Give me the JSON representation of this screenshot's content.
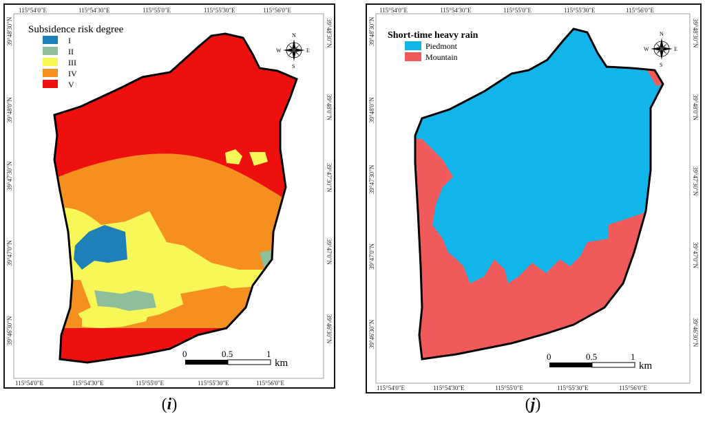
{
  "panels": [
    {
      "id": "i",
      "caption": "i",
      "legend": {
        "title": "Subsidence risk degree",
        "items": [
          {
            "label": "I",
            "color": "#1f7fb8"
          },
          {
            "label": "II",
            "color": "#8fbf9a"
          },
          {
            "label": "III",
            "color": "#f7f757"
          },
          {
            "label": "IV",
            "color": "#f59020"
          },
          {
            "label": "V",
            "color": "#ee0f0f"
          }
        ]
      },
      "top_ticks": [
        "115°54'0\"E",
        "115°54'30\"E",
        "115°55'0\"E",
        "115°55'30\"E",
        "115°56'0\"E"
      ],
      "bottom_ticks": [
        "115°54'0\"E",
        "115°54'30\"E",
        "115°55'0\"E",
        "115°55'30\"E",
        "115°56'0\"E"
      ],
      "left_ticks": [
        "39°48'30\"N",
        "39°48'0\"N",
        "39°47'30\"N",
        "39°47'0\"N",
        "39°46'30\"N"
      ],
      "right_ticks": [
        "39°48'30\"N",
        "39°48'0\"N",
        "39°47'30\"N",
        "39°47'0\"N",
        "39°46'30\"N"
      ],
      "scale": {
        "labels": [
          "0",
          "0.5",
          "1"
        ],
        "unit": "km"
      },
      "compass": {
        "n": "N",
        "s": "S",
        "e": "E",
        "w": "W"
      }
    },
    {
      "id": "j",
      "caption": "j",
      "legend": {
        "title": "Short-time heavy rain",
        "items": [
          {
            "label": "Piedmont",
            "color": "#12b5ea"
          },
          {
            "label": "Mountain",
            "color": "#f05a5a"
          }
        ]
      },
      "top_ticks": [
        "115°54'0\"E",
        "115°54'30\"E",
        "115°55'0\"E",
        "115°55'30\"E",
        "115°56'0\"E"
      ],
      "bottom_ticks": [
        "115°54'0\"E",
        "115°54'30\"E",
        "115°55'0\"E",
        "115°55'30\"E",
        "115°56'0\"E"
      ],
      "left_ticks": [
        "39°48'30\"N",
        "39°48'0\"N",
        "39°47'30\"N",
        "39°47'0\"N",
        "39°46'30\"N"
      ],
      "right_ticks": [
        "39°48'30\"N",
        "39°48'0\"N",
        "39°47'30\"N",
        "39°47'0\"N",
        "39°46'30\"N"
      ],
      "scale": {
        "labels": [
          "0",
          "0.5",
          "1"
        ],
        "unit": "km"
      },
      "compass": {
        "n": "N",
        "s": "S",
        "e": "E",
        "w": "W"
      }
    }
  ]
}
